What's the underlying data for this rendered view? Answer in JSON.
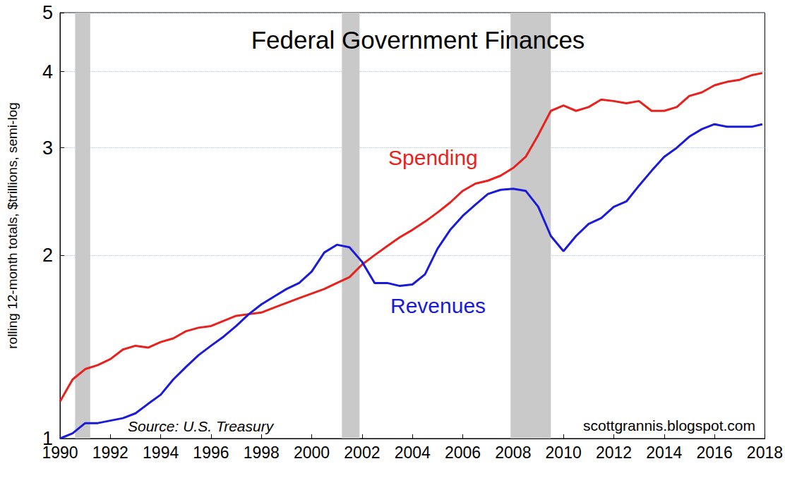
{
  "chart_data": {
    "type": "line",
    "title": "Federal Government Finances",
    "y_label": "rolling 12-month totals, $trillions, semi-log",
    "source": "Source: U.S. Treasury",
    "credit": "scottgrannis.blogspot.com",
    "log": "y",
    "grid": true,
    "xlim": [
      1990,
      2018
    ],
    "xticks": [
      1990,
      1992,
      1994,
      1996,
      1998,
      2000,
      2002,
      2004,
      2006,
      2008,
      2010,
      2012,
      2014,
      2016,
      2018
    ],
    "ylim": [
      1,
      5
    ],
    "yticks": [
      1,
      2,
      3,
      4,
      5
    ],
    "shaded_periods": [
      [
        1990.6,
        1991.2
      ],
      [
        2001.2,
        2001.9
      ],
      [
        2007.9,
        2009.5
      ]
    ],
    "x": [
      1990.0,
      1990.5,
      1991.0,
      1991.5,
      1992.0,
      1992.5,
      1993.0,
      1993.5,
      1994.0,
      1994.5,
      1995.0,
      1995.5,
      1996.0,
      1996.5,
      1997.0,
      1997.5,
      1998.0,
      1998.5,
      1999.0,
      1999.5,
      2000.0,
      2000.5,
      2001.0,
      2001.5,
      2002.0,
      2002.5,
      2003.0,
      2003.5,
      2004.0,
      2004.5,
      2005.0,
      2005.5,
      2006.0,
      2006.5,
      2007.0,
      2007.5,
      2008.0,
      2008.5,
      2009.0,
      2009.5,
      2010.0,
      2010.5,
      2011.0,
      2011.5,
      2012.0,
      2012.5,
      2013.0,
      2013.5,
      2014.0,
      2014.5,
      2015.0,
      2015.5,
      2016.0,
      2016.5,
      2017.0,
      2017.5,
      2017.9
    ],
    "series": [
      {
        "name": "Spending",
        "color": "#e8211c",
        "values": [
          1.15,
          1.25,
          1.3,
          1.32,
          1.35,
          1.4,
          1.42,
          1.41,
          1.44,
          1.46,
          1.5,
          1.52,
          1.53,
          1.56,
          1.59,
          1.6,
          1.61,
          1.64,
          1.67,
          1.7,
          1.73,
          1.76,
          1.8,
          1.84,
          1.93,
          2.0,
          2.07,
          2.14,
          2.2,
          2.27,
          2.35,
          2.44,
          2.55,
          2.62,
          2.65,
          2.7,
          2.78,
          2.9,
          3.15,
          3.45,
          3.52,
          3.45,
          3.5,
          3.6,
          3.58,
          3.55,
          3.58,
          3.45,
          3.45,
          3.5,
          3.65,
          3.7,
          3.8,
          3.85,
          3.88,
          3.95,
          3.98
        ]
      },
      {
        "name": "Revenues",
        "color": "#1a1adb",
        "values": [
          1.0,
          1.02,
          1.06,
          1.06,
          1.07,
          1.08,
          1.1,
          1.14,
          1.18,
          1.25,
          1.31,
          1.37,
          1.42,
          1.47,
          1.53,
          1.6,
          1.66,
          1.71,
          1.76,
          1.8,
          1.88,
          2.02,
          2.08,
          2.06,
          1.95,
          1.8,
          1.8,
          1.78,
          1.79,
          1.86,
          2.05,
          2.2,
          2.32,
          2.42,
          2.52,
          2.56,
          2.57,
          2.55,
          2.4,
          2.15,
          2.03,
          2.15,
          2.25,
          2.3,
          2.4,
          2.45,
          2.6,
          2.75,
          2.9,
          3.0,
          3.13,
          3.22,
          3.28,
          3.25,
          3.25,
          3.25,
          3.28
        ]
      }
    ]
  }
}
